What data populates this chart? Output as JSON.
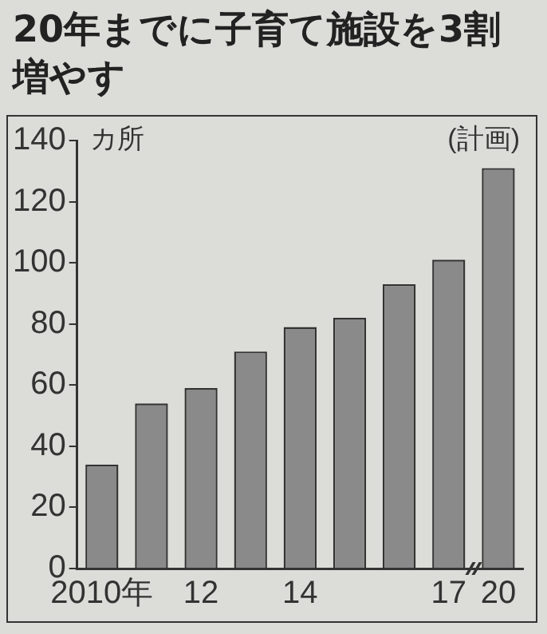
{
  "chart_data": {
    "type": "bar",
    "title": "20年までに子育て施設を3割増やす",
    "ylabel": "カ所",
    "annotations": [
      "(計画)"
    ],
    "categories": [
      "2010年",
      null,
      "12",
      null,
      "14",
      null,
      null,
      "17",
      "20"
    ],
    "values": [
      34,
      54,
      59,
      71,
      79,
      82,
      93,
      101,
      131
    ],
    "color": "#8a8a8a",
    "ylim": [
      0,
      140
    ],
    "yticks": [
      0,
      20,
      40,
      60,
      80,
      100,
      120,
      140
    ],
    "grid": false,
    "legend": false
  }
}
